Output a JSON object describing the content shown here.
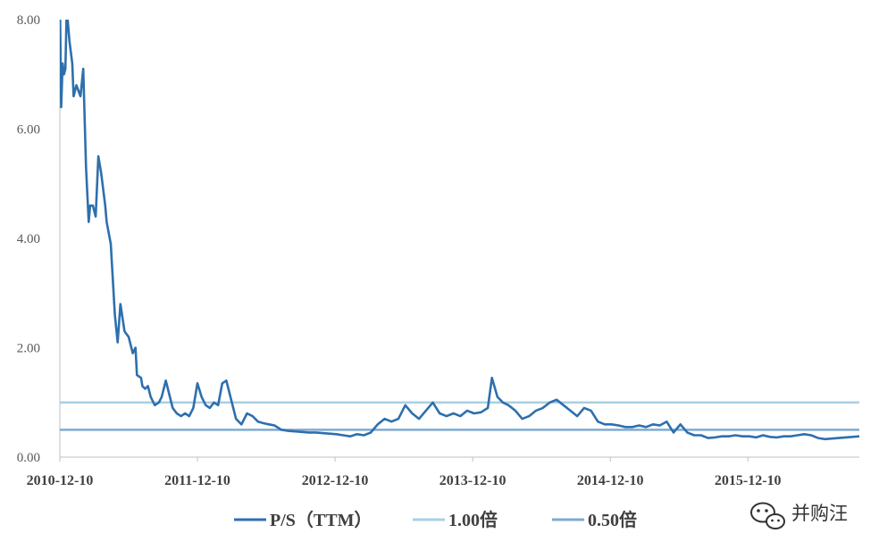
{
  "chart_data": {
    "type": "line",
    "title": "",
    "xlabel": "",
    "ylabel": "",
    "ylim": [
      0,
      8
    ],
    "yticks": [
      "0.00",
      "2.00",
      "4.00",
      "6.00",
      "8.00"
    ],
    "ytick_values": [
      0,
      2,
      4,
      6,
      8
    ],
    "xticks": [
      "2010-12-10",
      "2011-12-10",
      "2012-12-10",
      "2013-12-10",
      "2014-12-10",
      "2015-12-10"
    ],
    "xtick_years": [
      2010.94,
      2011.94,
      2012.94,
      2013.94,
      2014.94,
      2015.94
    ],
    "xlim": [
      2010.94,
      2016.75
    ],
    "grid": false,
    "legend_position": "bottom",
    "series": [
      {
        "name": "P/S（TTM）",
        "color": "#2e6fad",
        "x": [
          2010.94,
          2010.95,
          2010.96,
          2010.97,
          2010.98,
          2010.99,
          2011.01,
          2011.03,
          2011.04,
          2011.06,
          2011.09,
          2011.11,
          2011.13,
          2011.15,
          2011.16,
          2011.18,
          2011.2,
          2011.22,
          2011.24,
          2011.27,
          2011.28,
          2011.31,
          2011.34,
          2011.36,
          2011.38,
          2011.41,
          2011.44,
          2011.47,
          2011.49,
          2011.5,
          2011.53,
          2011.54,
          2011.56,
          2011.58,
          2011.6,
          2011.63,
          2011.66,
          2011.68,
          2011.71,
          2011.73,
          2011.76,
          2011.79,
          2011.82,
          2011.85,
          2011.88,
          2011.91,
          2011.94,
          2011.97,
          2012.0,
          2012.03,
          2012.06,
          2012.09,
          2012.12,
          2012.15,
          2012.18,
          2012.22,
          2012.26,
          2012.3,
          2012.34,
          2012.38,
          2012.42,
          2012.46,
          2012.5,
          2012.55,
          2012.6,
          2012.65,
          2012.7,
          2012.75,
          2012.8,
          2012.85,
          2012.9,
          2012.95,
          2013.0,
          2013.05,
          2013.1,
          2013.15,
          2013.2,
          2013.25,
          2013.3,
          2013.35,
          2013.4,
          2013.45,
          2013.5,
          2013.55,
          2013.6,
          2013.65,
          2013.7,
          2013.75,
          2013.8,
          2013.85,
          2013.9,
          2013.95,
          2014.0,
          2014.05,
          2014.08,
          2014.12,
          2014.16,
          2014.2,
          2014.25,
          2014.3,
          2014.35,
          2014.4,
          2014.45,
          2014.5,
          2014.55,
          2014.6,
          2014.65,
          2014.7,
          2014.75,
          2014.8,
          2014.85,
          2014.9,
          2014.95,
          2015.0,
          2015.05,
          2015.1,
          2015.15,
          2015.2,
          2015.25,
          2015.3,
          2015.35,
          2015.4,
          2015.45,
          2015.5,
          2015.55,
          2015.6,
          2015.65,
          2015.7,
          2015.75,
          2015.8,
          2015.85,
          2015.9,
          2015.95,
          2016.0,
          2016.05,
          2016.1,
          2016.15,
          2016.2,
          2016.25,
          2016.3,
          2016.35,
          2016.4,
          2016.45,
          2016.5,
          2016.55,
          2016.6,
          2016.65,
          2016.7,
          2016.75
        ],
        "values": [
          8.4,
          6.4,
          7.2,
          7.0,
          7.1,
          8.2,
          7.6,
          7.2,
          6.6,
          6.8,
          6.6,
          7.1,
          5.3,
          4.3,
          4.6,
          4.6,
          4.4,
          5.5,
          5.2,
          4.6,
          4.3,
          3.9,
          2.6,
          2.1,
          2.8,
          2.3,
          2.2,
          1.9,
          2.0,
          1.5,
          1.45,
          1.3,
          1.25,
          1.3,
          1.1,
          0.95,
          1.0,
          1.1,
          1.4,
          1.2,
          0.9,
          0.8,
          0.75,
          0.8,
          0.75,
          0.9,
          1.35,
          1.1,
          0.95,
          0.9,
          1.0,
          0.95,
          1.35,
          1.4,
          1.1,
          0.7,
          0.6,
          0.8,
          0.75,
          0.65,
          0.62,
          0.6,
          0.58,
          0.5,
          0.48,
          0.47,
          0.46,
          0.45,
          0.45,
          0.44,
          0.43,
          0.42,
          0.4,
          0.38,
          0.42,
          0.4,
          0.45,
          0.6,
          0.7,
          0.65,
          0.7,
          0.95,
          0.8,
          0.7,
          0.85,
          1.0,
          0.8,
          0.75,
          0.8,
          0.75,
          0.85,
          0.8,
          0.82,
          0.9,
          1.45,
          1.1,
          1.0,
          0.95,
          0.85,
          0.7,
          0.75,
          0.85,
          0.9,
          1.0,
          1.05,
          0.95,
          0.85,
          0.75,
          0.9,
          0.85,
          0.65,
          0.6,
          0.6,
          0.58,
          0.55,
          0.55,
          0.58,
          0.55,
          0.6,
          0.58,
          0.65,
          0.45,
          0.6,
          0.45,
          0.4,
          0.4,
          0.35,
          0.36,
          0.38,
          0.38,
          0.4,
          0.38,
          0.38,
          0.36,
          0.4,
          0.37,
          0.36,
          0.38,
          0.38,
          0.4,
          0.42,
          0.4,
          0.35,
          0.33,
          0.34,
          0.35,
          0.36,
          0.37,
          0.38
        ]
      },
      {
        "name": "1.00倍",
        "color": "#a9cfe4",
        "constant": 1.0
      },
      {
        "name": "0.50倍",
        "color": "#7faad2",
        "constant": 0.5
      }
    ]
  },
  "watermark": {
    "text": "并购汪",
    "icon": "wechat-icon"
  }
}
